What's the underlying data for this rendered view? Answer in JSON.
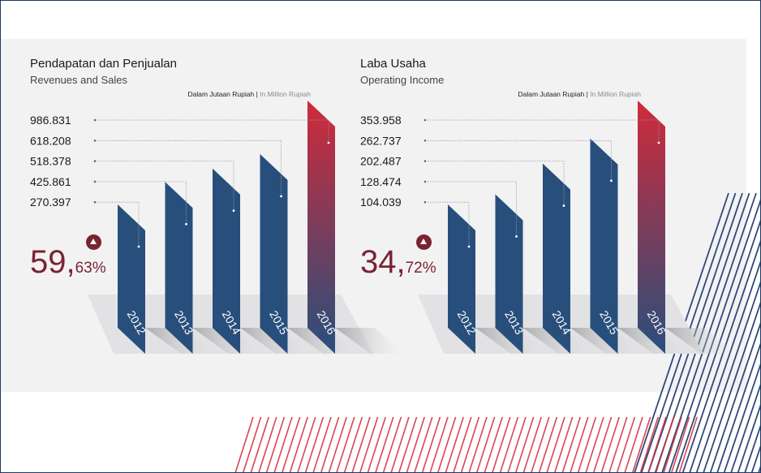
{
  "chart_data": [
    {
      "type": "bar",
      "title": "Pendapatan dan Penjualan",
      "subtitle": "Revenues and Sales",
      "unit_id": "Dalam Jutaan Rupiah",
      "unit_sep": " | ",
      "unit_en": "In Million Rupiah",
      "categories": [
        "2012",
        "2013",
        "2014",
        "2015",
        "2016"
      ],
      "values": [
        270397,
        425861,
        518378,
        618208,
        986831
      ],
      "value_labels": [
        "270.397",
        "425.861",
        "518.378",
        "618.208",
        "986.831"
      ],
      "growth": {
        "number": "59,",
        "decimals": "63",
        "unit": "%"
      },
      "colors": {
        "bar": "#284f7c",
        "highlight_top": "#d02a3a",
        "growth": "#7a2332"
      }
    },
    {
      "type": "bar",
      "title": "Laba Usaha",
      "subtitle": "Operating Income",
      "unit_id": "Dalam Jutaan Rupiah",
      "unit_sep": " | ",
      "unit_en": "In Million Rupiah",
      "categories": [
        "2012",
        "2013",
        "2014",
        "2015",
        "2016"
      ],
      "values": [
        104039,
        128474,
        202487,
        262737,
        353958
      ],
      "value_labels": [
        "104.039",
        "128.474",
        "202.487",
        "262.737",
        "353.958"
      ],
      "growth": {
        "number": "34,",
        "decimals": "72",
        "unit": "%"
      },
      "colors": {
        "bar": "#284f7c",
        "highlight_top": "#d02a3a",
        "growth": "#7a2332"
      }
    }
  ],
  "decoration": {
    "stripe_blue": "#2d4a78",
    "stripe_red": "#d8303d"
  }
}
